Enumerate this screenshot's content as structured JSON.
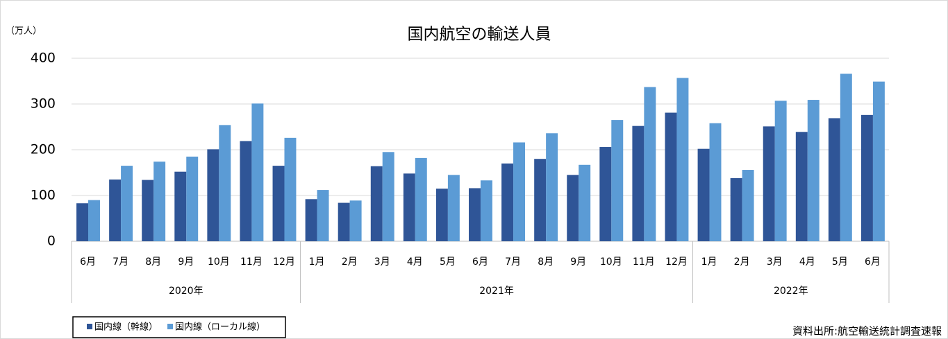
{
  "chart_data": {
    "type": "bar",
    "title": "国内航空の輸送人員",
    "y_label": "（万人）",
    "source": "資料出所:航空輸送統計調査速報",
    "groups": [
      {
        "name": "2020年",
        "categories": [
          "6月",
          "7月",
          "8月",
          "9月",
          "10月",
          "11月",
          "12月"
        ]
      },
      {
        "name": "2021年",
        "categories": [
          "1月",
          "2月",
          "3月",
          "4月",
          "5月",
          "6月",
          "7月",
          "8月",
          "9月",
          "10月",
          "11月",
          "12月"
        ]
      },
      {
        "name": "2022年",
        "categories": [
          "1月",
          "2月",
          "3月",
          "4月",
          "5月",
          "6月"
        ]
      }
    ],
    "series": [
      {
        "name": "国内線（幹線）",
        "color": "#2f5597",
        "values": [
          83,
          135,
          134,
          152,
          201,
          219,
          165,
          92,
          84,
          164,
          148,
          115,
          116,
          170,
          180,
          145,
          206,
          252,
          281,
          202,
          138,
          251,
          239,
          269,
          276
        ]
      },
      {
        "name": "国内線（ローカル線）",
        "color": "#5b9bd5",
        "values": [
          90,
          165,
          174,
          185,
          254,
          301,
          226,
          112,
          89,
          195,
          182,
          145,
          133,
          216,
          236,
          167,
          265,
          337,
          357,
          258,
          156,
          307,
          309,
          366,
          349
        ]
      }
    ],
    "ylim": [
      0,
      400
    ],
    "yticks": [
      0,
      100,
      200,
      300,
      400
    ],
    "grid": true,
    "legend": "bottom-left"
  }
}
